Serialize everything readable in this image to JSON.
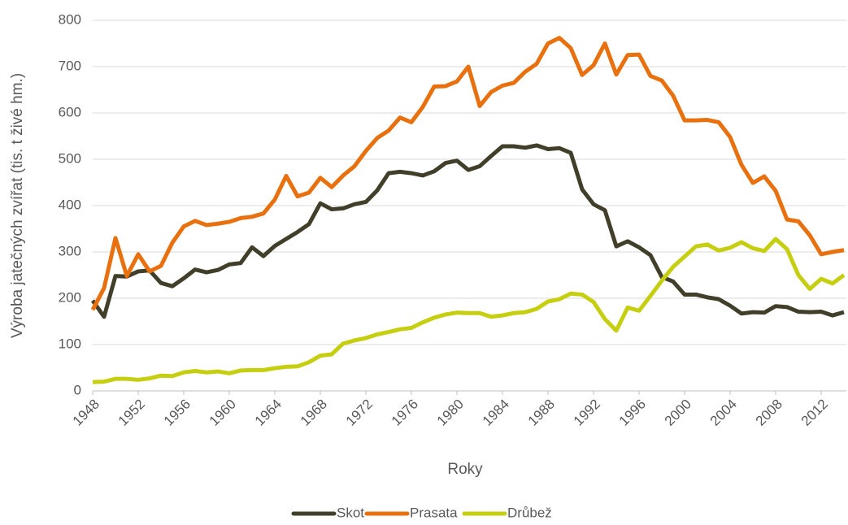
{
  "chart_data": {
    "type": "line",
    "x_label": "Roky",
    "y_label": "Výroba jatečných zvířat (tis. t živé hm.)",
    "x": [
      1948,
      1949,
      1950,
      1951,
      1952,
      1953,
      1954,
      1955,
      1956,
      1957,
      1958,
      1959,
      1960,
      1961,
      1962,
      1963,
      1964,
      1965,
      1966,
      1967,
      1968,
      1969,
      1970,
      1971,
      1972,
      1973,
      1974,
      1975,
      1976,
      1977,
      1978,
      1979,
      1980,
      1981,
      1982,
      1983,
      1984,
      1985,
      1986,
      1987,
      1988,
      1989,
      1990,
      1991,
      1992,
      1993,
      1994,
      1995,
      1996,
      1997,
      1998,
      1999,
      2000,
      2001,
      2002,
      2003,
      2004,
      2005,
      2006,
      2007,
      2008,
      2009,
      2010,
      2011,
      2012,
      2013,
      2014
    ],
    "series": [
      {
        "name": "Skot",
        "color": "#413f2a",
        "values": [
          195,
          160,
          248,
          247,
          258,
          260,
          233,
          226,
          243,
          262,
          256,
          261,
          273,
          276,
          310,
          291,
          313,
          328,
          343,
          360,
          405,
          392,
          394,
          403,
          408,
          433,
          470,
          473,
          470,
          465,
          474,
          492,
          497,
          477,
          485,
          507,
          528,
          528,
          525,
          530,
          522,
          524,
          514,
          435,
          403,
          390,
          312,
          323,
          310,
          293,
          246,
          236,
          208,
          208,
          202,
          198,
          184,
          167,
          170,
          169,
          183,
          181,
          171,
          170,
          171,
          163,
          170
        ]
      },
      {
        "name": "Prasata",
        "color": "#e8700e",
        "values": [
          175,
          222,
          330,
          248,
          295,
          258,
          270,
          320,
          355,
          367,
          358,
          361,
          365,
          373,
          376,
          383,
          413,
          464,
          420,
          428,
          460,
          440,
          465,
          485,
          518,
          546,
          562,
          590,
          580,
          613,
          657,
          658,
          668,
          700,
          615,
          645,
          659,
          665,
          689,
          706,
          750,
          762,
          740,
          682,
          703,
          750,
          683,
          725,
          726,
          680,
          670,
          637,
          584,
          584,
          585,
          580,
          548,
          488,
          449,
          463,
          432,
          370,
          366,
          336,
          295,
          300,
          304
        ]
      },
      {
        "name": "Drůbež",
        "color": "#c5cf10",
        "values": [
          19,
          20,
          26,
          26,
          24,
          27,
          33,
          32,
          40,
          43,
          40,
          42,
          38,
          44,
          45,
          45,
          49,
          52,
          53,
          62,
          76,
          79,
          102,
          109,
          114,
          122,
          127,
          133,
          136,
          148,
          158,
          165,
          169,
          168,
          168,
          160,
          163,
          168,
          170,
          177,
          193,
          198,
          210,
          208,
          192,
          155,
          130,
          180,
          173,
          205,
          238,
          268,
          290,
          312,
          316,
          303,
          309,
          321,
          308,
          302,
          328,
          306,
          250,
          220,
          242,
          232,
          250
        ]
      }
    ],
    "xlim": [
      1948,
      2014
    ],
    "xticks": [
      1948,
      1952,
      1956,
      1960,
      1964,
      1968,
      1972,
      1976,
      1980,
      1984,
      1988,
      1992,
      1996,
      2000,
      2004,
      2008,
      2012
    ],
    "ylim": [
      0,
      800
    ],
    "yticks": [
      0,
      100,
      200,
      300,
      400,
      500,
      600,
      700,
      800
    ],
    "grid": true,
    "legend": "bottom"
  }
}
